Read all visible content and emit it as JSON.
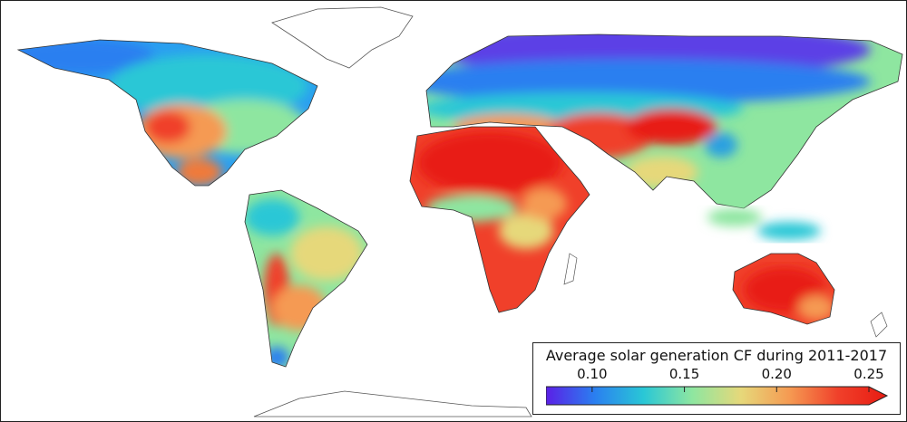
{
  "map": {
    "type": "choropleth-world",
    "background": "#ffffff",
    "border_color": "#333333"
  },
  "legend": {
    "title": "Average solar generation CF during 2011-2017",
    "ticks": [
      {
        "value": 0.1,
        "label": "0.10"
      },
      {
        "value": 0.15,
        "label": "0.15"
      },
      {
        "value": 0.2,
        "label": "0.20"
      },
      {
        "value": 0.25,
        "label": "0.25"
      }
    ],
    "range": [
      0.075,
      0.25
    ],
    "extend": "max",
    "colormap": "rainbow",
    "stops": [
      "#5b1fe6",
      "#2a7ff0",
      "#29c7d6",
      "#8ee6a0",
      "#e6d87a",
      "#f59a52",
      "#f0402a",
      "#e81b12"
    ]
  }
}
